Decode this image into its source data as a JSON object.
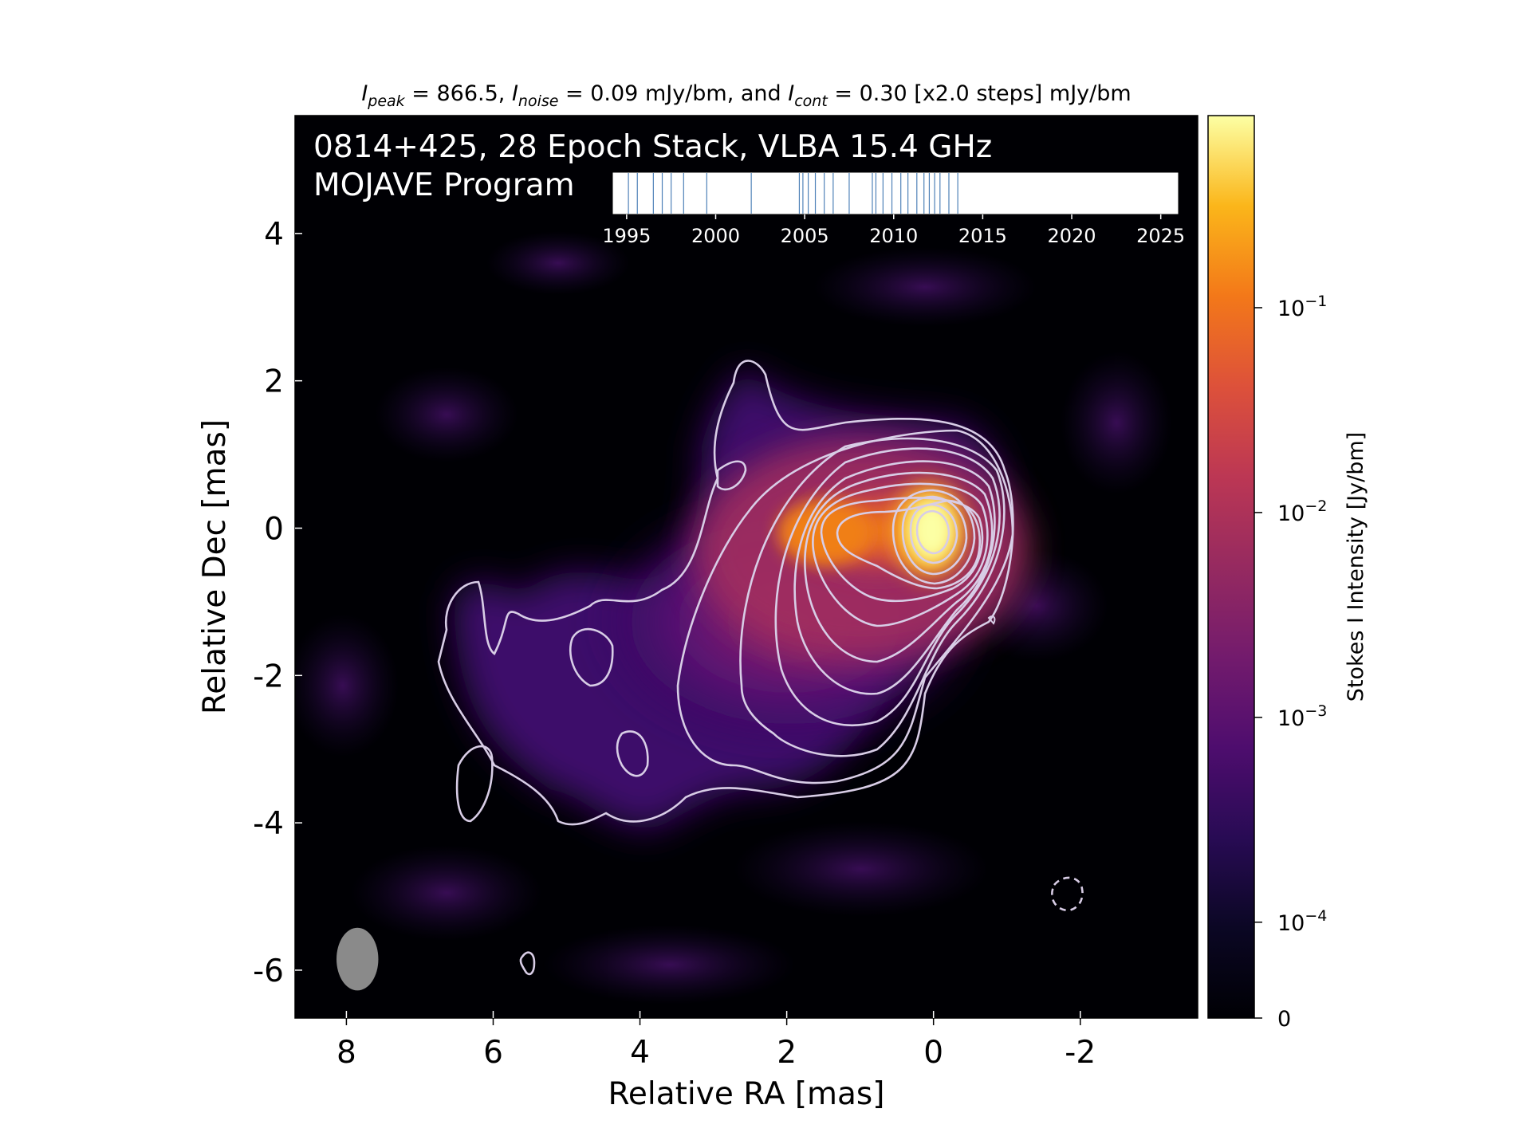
{
  "chart_data": {
    "type": "heatmap",
    "title_parts": [
      {
        "t": "I",
        "i": true
      },
      {
        "t": "peak",
        "i": true,
        "sub": true
      },
      {
        "t": " = 866.5, "
      },
      {
        "t": "I",
        "i": true
      },
      {
        "t": "noise",
        "i": true,
        "sub": true
      },
      {
        "t": " = 0.09 mJy/bm, and "
      },
      {
        "t": "I",
        "i": true
      },
      {
        "t": "cont",
        "i": true,
        "sub": true
      },
      {
        "t": " = 0.30 [x2.0 steps] mJy/bm"
      }
    ],
    "overlay_line1": "0814+425, 28 Epoch Stack, VLBA 15.4 GHz",
    "overlay_line2": "MOJAVE Program",
    "xlabel": "Relative RA [mas]",
    "ylabel": "Relative Dec [mas]",
    "colorbar_label": "Stokes I Intensity [Jy/bm]",
    "xlim": [
      8.7,
      -3.6
    ],
    "ylim": [
      -6.65,
      5.6
    ],
    "x_ticks": [
      8,
      6,
      4,
      2,
      0,
      -2
    ],
    "x_tick_labels": [
      "8",
      "6",
      "4",
      "2",
      "0",
      "-2"
    ],
    "y_ticks": [
      4,
      2,
      0,
      -2,
      -4,
      -6
    ],
    "y_tick_labels": [
      "4",
      "2",
      "0",
      "-2",
      "-4",
      "-6"
    ],
    "colorbar_ticks": [
      {
        "value": 0.1,
        "mant": "10",
        "exp": "−1"
      },
      {
        "value": 0.01,
        "mant": "10",
        "exp": "−2"
      },
      {
        "value": 0.001,
        "mant": "10",
        "exp": "−3"
      },
      {
        "value": 0.0001,
        "mant": "10",
        "exp": "−4"
      },
      {
        "value": 0,
        "mant": "0",
        "exp": ""
      }
    ],
    "colorscale": "inferno (log)",
    "intensity_range_jy": [
      0,
      0.8665
    ],
    "peak_position_mas": [
      0,
      0
    ],
    "beam": {
      "x": 7.85,
      "y": -5.85,
      "major_mas": 0.85,
      "minor_mas": 0.57,
      "pa_deg": 0
    },
    "timeline": {
      "xlim": [
        1994.2,
        2026.0
      ],
      "ticks": [
        1995,
        2000,
        2005,
        2010,
        2015,
        2020,
        2025
      ],
      "tick_labels": [
        "1995",
        "2000",
        "2005",
        "2010",
        "2015",
        "2020",
        "2025"
      ],
      "epochs": [
        1995.1,
        1995.6,
        1996.5,
        1997.0,
        1997.5,
        1998.2,
        1999.5,
        2002.0,
        2004.7,
        2004.9,
        2005.2,
        2005.6,
        2006.1,
        2006.6,
        2007.5,
        2008.8,
        2009.0,
        2009.4,
        2009.9,
        2010.4,
        2010.8,
        2011.3,
        2011.7,
        2012.0,
        2012.3,
        2012.6,
        2013.1,
        2013.6
      ]
    },
    "colors": {
      "contour": "#d8cde6",
      "negative_contour": "#d8cde6",
      "beam": "#8a8a8a",
      "epoch_line": "#4f82b8",
      "background": "#000004"
    }
  }
}
